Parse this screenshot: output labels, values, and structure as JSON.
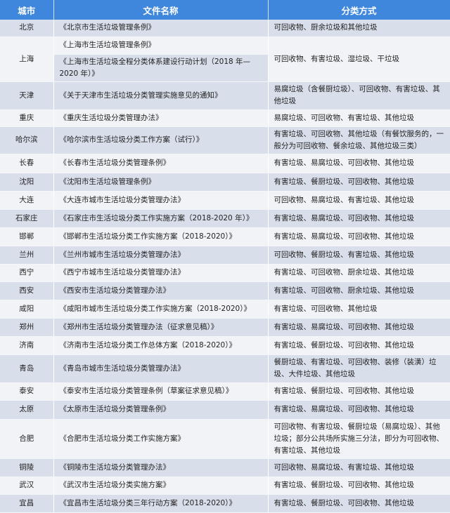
{
  "header": {
    "city": "城市",
    "document": "文件名称",
    "method": "分类方式"
  },
  "colors": {
    "header": "#3f87dc",
    "row_shade": "#d8deea",
    "row_plain": "#f1f3f7"
  },
  "rows": [
    {
      "city": "北京",
      "docs": [
        "《北京市生活垃圾管理条例》"
      ],
      "method": "可回收物、厨余垃圾和其他垃圾"
    },
    {
      "city": "上海",
      "docs": [
        "《上海市生活垃圾管理条例》",
        "《上海市生活垃圾全程分类体系建设行动计划（2018 年—2020 年）》"
      ],
      "method": "可回收物、有害垃圾、湿垃圾、干垃圾"
    },
    {
      "city": "天津",
      "docs": [
        "《关于天津市生活垃圾分类管理实施意见的通知》"
      ],
      "method": "易腐垃圾（含餐厨垃圾）、可回收物、有害垃圾、其他垃圾"
    },
    {
      "city": "重庆",
      "docs": [
        "《重庆生活垃圾分类管理办法》"
      ],
      "method": "易腐垃圾、可回收物、有害垃圾、其他垃圾"
    },
    {
      "city": "哈尔滨",
      "docs": [
        "《哈尔滨市生活垃圾分类工作方案（试行）》"
      ],
      "method": "有害垃圾、可回收物、其他垃圾（有餐饮服务的，一般分为可回收物、餐余垃圾、其他垃圾三类）"
    },
    {
      "city": "长春",
      "docs": [
        "《长春市生活垃圾分类管理条例》"
      ],
      "method": "有害垃圾、易腐垃圾、可回收物、其他垃圾"
    },
    {
      "city": "沈阳",
      "docs": [
        "《沈阳市生活垃圾管理条例》"
      ],
      "method": "有害垃圾、餐厨垃圾、可回收物、其他垃圾"
    },
    {
      "city": "大连",
      "docs": [
        "《大连市城市生活垃圾分类管理办法》"
      ],
      "method": "可回收物、易腐垃圾、有害垃圾、其他垃圾"
    },
    {
      "city": "石家庄",
      "docs": [
        "《石家庄市生活垃圾分类工作实施方案（2018-2020 年）》"
      ],
      "method": "有害垃圾、易腐垃圾、可回收物、其他垃圾"
    },
    {
      "city": "邯郸",
      "docs": [
        "《邯郸市生活垃圾分类工作实施方案（2018-2020）》"
      ],
      "method": "有害垃圾、易腐垃圾、可回收物、其他垃圾"
    },
    {
      "city": "兰州",
      "docs": [
        "《兰州市城市生活垃圾分类管理办法》"
      ],
      "method": "可回收物、餐厨垃圾、有害垃圾、其他垃圾"
    },
    {
      "city": "西宁",
      "docs": [
        "《西宁市城市生活垃圾分类管理办法》"
      ],
      "method": "有害垃圾、可回收物、厨余垃圾、其他垃圾"
    },
    {
      "city": "西安",
      "docs": [
        "《西安市生活垃圾分类管理办法》"
      ],
      "method": "有害垃圾、可回收物、厨余垃圾、其他垃圾"
    },
    {
      "city": "咸阳",
      "docs": [
        "《咸阳市城市生活垃圾分类工作实施方案（2018-2020）》"
      ],
      "method": "有害垃圾、可回收物、其他垃圾"
    },
    {
      "city": "郑州",
      "docs": [
        "《郑州市生活垃圾分类管理办法（征求意见稿）》"
      ],
      "method": "有害垃圾、易腐垃圾、可回收物、其他垃圾"
    },
    {
      "city": "济南",
      "docs": [
        "《济南市生活垃圾分类工作总体方案（2018-2020）》"
      ],
      "method": "有害垃圾、餐厨垃圾、可回收物、其他垃圾"
    },
    {
      "city": "青岛",
      "docs": [
        "《青岛市城市生活垃圾分类管理办法》"
      ],
      "method": "餐厨垃圾、有害垃圾、可回收物、装修（装潢）垃圾、大件垃圾、其他垃圾"
    },
    {
      "city": "泰安",
      "docs": [
        "《泰安市生活垃圾分类管理条例（草案征求意见稿）》"
      ],
      "method": "有害垃圾、餐厨垃圾、可回收物、其他垃圾"
    },
    {
      "city": "太原",
      "docs": [
        "《太原市生活垃圾分类管理条例》"
      ],
      "method": "有害垃圾、易腐垃圾、可回收物、其他垃圾"
    },
    {
      "city": "合肥",
      "docs": [
        "《合肥市生活垃圾分类工作实施方案》"
      ],
      "method": "可回收物、有害垃圾、餐厨垃圾（易腐垃圾）、其他垃圾；部分公共场所实施三分法，即分为可回收物、有害垃圾、其他垃圾"
    },
    {
      "city": "铜陵",
      "docs": [
        "《铜陵市生活垃圾分类管理办法》"
      ],
      "method": "可回收物、易腐垃圾、有害垃圾、其他垃圾"
    },
    {
      "city": "武汉",
      "docs": [
        "《武汉市生活垃圾分类实施方案》"
      ],
      "method": "有害垃圾、餐厨垃圾、可回收物、其他垃圾"
    },
    {
      "city": "宜昌",
      "docs": [
        "《宜昌市生活垃圾分类三年行动方案（2018-2020）》"
      ],
      "method": "有害垃圾、餐厨垃圾、可回收物、其他垃圾"
    }
  ]
}
